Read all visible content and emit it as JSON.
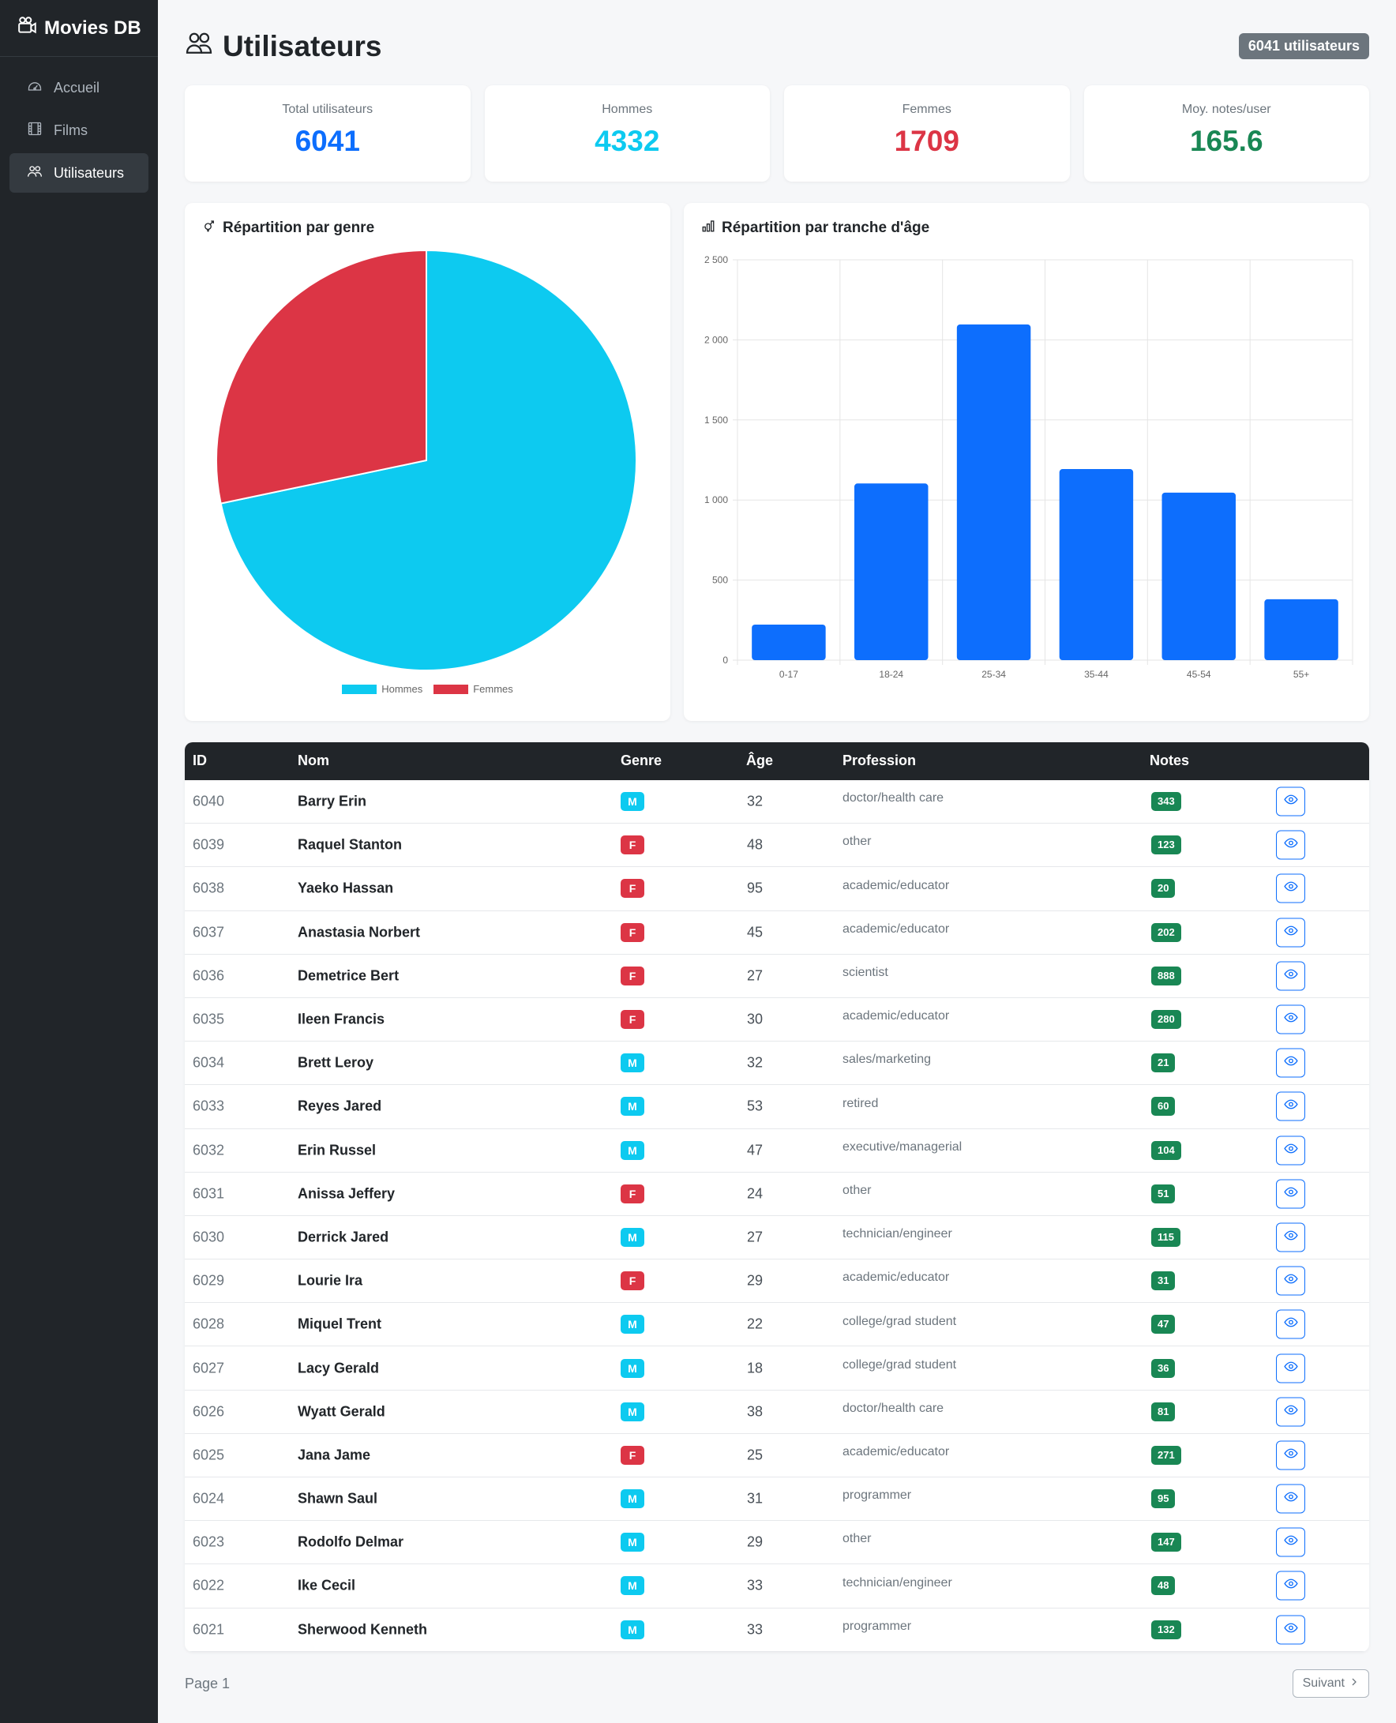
{
  "app": {
    "brand": "Movies DB"
  },
  "sidebar": {
    "items": [
      {
        "label": "Accueil",
        "icon": "speedometer-icon",
        "active": false
      },
      {
        "label": "Films",
        "icon": "film-icon",
        "active": false
      },
      {
        "label": "Utilisateurs",
        "icon": "people-icon",
        "active": true
      }
    ]
  },
  "header": {
    "title": "Utilisateurs",
    "count_badge": "6041 utilisateurs"
  },
  "stats": [
    {
      "label": "Total utilisateurs",
      "value": "6041",
      "color": "#0d6efd"
    },
    {
      "label": "Hommes",
      "value": "4332",
      "color": "#0dcaf0"
    },
    {
      "label": "Femmes",
      "value": "1709",
      "color": "#dc3545"
    },
    {
      "label": "Moy. notes/user",
      "value": "165.6",
      "color": "#198754"
    }
  ],
  "gender_card": {
    "title": "Répartition par genre"
  },
  "age_card": {
    "title": "Répartition par tranche d'âge"
  },
  "chart_data": [
    {
      "type": "pie",
      "categories": [
        "Hommes",
        "Femmes"
      ],
      "values": [
        4332,
        1709
      ],
      "colors": [
        "#0dcaf0",
        "#dc3545"
      ],
      "legend": "bottom"
    },
    {
      "type": "bar",
      "categories": [
        "0-17",
        "18-24",
        "25-34",
        "35-44",
        "45-54",
        "55+"
      ],
      "values": [
        222,
        1103,
        2096,
        1193,
        1046,
        380
      ],
      "ylim": [
        0,
        2500
      ],
      "yticks": [
        "0",
        "500",
        "1 000",
        "1 500",
        "2 000",
        "2 500"
      ],
      "grid": true,
      "color": "#0d6efd"
    }
  ],
  "table": {
    "columns": {
      "id": "ID",
      "nom": "Nom",
      "genre": "Genre",
      "age": "Âge",
      "profession": "Profession",
      "notes": "Notes"
    },
    "rows": [
      {
        "id": "6040",
        "nom": "Barry Erin",
        "genre": "M",
        "age": "32",
        "profession": "doctor/health care",
        "notes": "343"
      },
      {
        "id": "6039",
        "nom": "Raquel Stanton",
        "genre": "F",
        "age": "48",
        "profession": "other",
        "notes": "123"
      },
      {
        "id": "6038",
        "nom": "Yaeko Hassan",
        "genre": "F",
        "age": "95",
        "profession": "academic/educator",
        "notes": "20"
      },
      {
        "id": "6037",
        "nom": "Anastasia Norbert",
        "genre": "F",
        "age": "45",
        "profession": "academic/educator",
        "notes": "202"
      },
      {
        "id": "6036",
        "nom": "Demetrice Bert",
        "genre": "F",
        "age": "27",
        "profession": "scientist",
        "notes": "888"
      },
      {
        "id": "6035",
        "nom": "Ileen Francis",
        "genre": "F",
        "age": "30",
        "profession": "academic/educator",
        "notes": "280"
      },
      {
        "id": "6034",
        "nom": "Brett Leroy",
        "genre": "M",
        "age": "32",
        "profession": "sales/marketing",
        "notes": "21"
      },
      {
        "id": "6033",
        "nom": "Reyes Jared",
        "genre": "M",
        "age": "53",
        "profession": "retired",
        "notes": "60"
      },
      {
        "id": "6032",
        "nom": "Erin Russel",
        "genre": "M",
        "age": "47",
        "profession": "executive/managerial",
        "notes": "104"
      },
      {
        "id": "6031",
        "nom": "Anissa Jeffery",
        "genre": "F",
        "age": "24",
        "profession": "other",
        "notes": "51"
      },
      {
        "id": "6030",
        "nom": "Derrick Jared",
        "genre": "M",
        "age": "27",
        "profession": "technician/engineer",
        "notes": "115"
      },
      {
        "id": "6029",
        "nom": "Lourie Ira",
        "genre": "F",
        "age": "29",
        "profession": "academic/educator",
        "notes": "31"
      },
      {
        "id": "6028",
        "nom": "Miquel Trent",
        "genre": "M",
        "age": "22",
        "profession": "college/grad student",
        "notes": "47"
      },
      {
        "id": "6027",
        "nom": "Lacy Gerald",
        "genre": "M",
        "age": "18",
        "profession": "college/grad student",
        "notes": "36"
      },
      {
        "id": "6026",
        "nom": "Wyatt Gerald",
        "genre": "M",
        "age": "38",
        "profession": "doctor/health care",
        "notes": "81"
      },
      {
        "id": "6025",
        "nom": "Jana Jame",
        "genre": "F",
        "age": "25",
        "profession": "academic/educator",
        "notes": "271"
      },
      {
        "id": "6024",
        "nom": "Shawn Saul",
        "genre": "M",
        "age": "31",
        "profession": "programmer",
        "notes": "95"
      },
      {
        "id": "6023",
        "nom": "Rodolfo Delmar",
        "genre": "M",
        "age": "29",
        "profession": "other",
        "notes": "147"
      },
      {
        "id": "6022",
        "nom": "Ike Cecil",
        "genre": "M",
        "age": "33",
        "profession": "technician/engineer",
        "notes": "48"
      },
      {
        "id": "6021",
        "nom": "Sherwood Kenneth",
        "genre": "M",
        "age": "33",
        "profession": "programmer",
        "notes": "132"
      }
    ],
    "genre_colors": {
      "M": "#0dcaf0",
      "F": "#dc3545"
    }
  },
  "pagination": {
    "page_label": "Page 1",
    "next_label": "Suivant"
  }
}
